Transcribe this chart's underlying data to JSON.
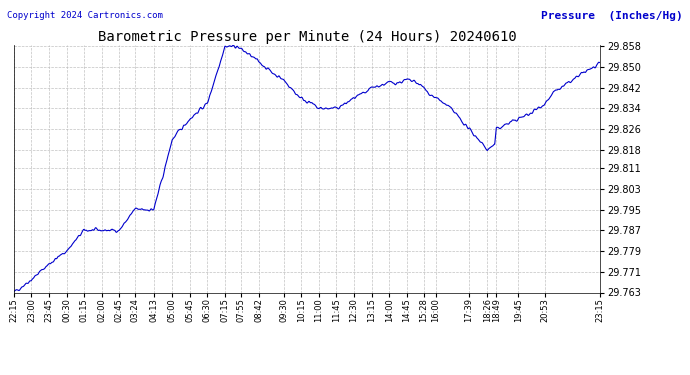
{
  "title": "Barometric Pressure per Minute (24 Hours) 20240610",
  "ylabel": "Pressure  (Inches/Hg)",
  "copyright": "Copyright 2024 Cartronics.com",
  "line_color": "#0000cc",
  "background_color": "#ffffff",
  "grid_color": "#bbbbbb",
  "ylabel_color": "#0000cc",
  "copyright_color": "#0000cc",
  "title_color": "#000000",
  "ylim": [
    29.763,
    29.8585
  ],
  "yticks": [
    29.763,
    29.771,
    29.779,
    29.787,
    29.795,
    29.803,
    29.811,
    29.818,
    29.826,
    29.834,
    29.842,
    29.85,
    29.858
  ],
  "xtick_labels": [
    "22:15",
    "23:00",
    "23:45",
    "00:30",
    "01:15",
    "02:00",
    "02:45",
    "03:24",
    "04:13",
    "05:00",
    "05:45",
    "06:30",
    "07:15",
    "07:55",
    "08:42",
    "09:30",
    "10:15",
    "11:00",
    "11:45",
    "12:30",
    "13:15",
    "14:00",
    "14:45",
    "15:28",
    "16:00",
    "17:39",
    "18:26",
    "18:49",
    "19:45",
    "20:53",
    "23:15"
  ],
  "data_x": [
    0,
    45,
    90,
    135,
    180,
    225,
    270,
    309,
    358,
    385,
    405,
    450,
    495,
    540,
    570,
    580,
    600,
    627,
    660,
    690,
    720,
    735,
    760,
    780,
    810,
    825,
    850,
    870,
    900,
    915,
    940,
    960,
    985,
    1005,
    1030,
    1048,
    1060,
    1080,
    1110,
    1130,
    1164,
    1190,
    1211,
    1230,
    1234,
    1260,
    1290,
    1320,
    1358,
    1380,
    1410,
    1440,
    1470,
    1500
  ],
  "data_y": [
    29.763,
    29.768,
    29.774,
    29.779,
    29.787,
    29.787,
    29.787,
    29.795,
    29.795,
    29.81,
    29.822,
    29.83,
    29.836,
    29.858,
    29.858,
    29.857,
    29.855,
    29.852,
    29.848,
    29.845,
    29.84,
    29.838,
    29.836,
    29.834,
    29.834,
    29.834,
    29.836,
    29.838,
    29.84,
    29.842,
    29.843,
    29.844,
    29.844,
    29.845,
    29.844,
    29.842,
    29.84,
    29.838,
    29.835,
    29.832,
    29.826,
    29.822,
    29.818,
    29.82,
    29.826,
    29.828,
    29.83,
    29.832,
    29.836,
    29.84,
    29.843,
    29.846,
    29.849,
    29.851
  ]
}
